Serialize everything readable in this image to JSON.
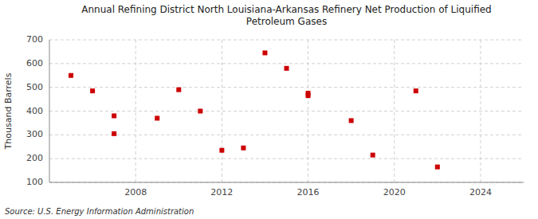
{
  "chart_data": {
    "type": "scatter",
    "title": "Annual Refining District North Louisiana-Arkansas Refinery Net Production of Liquified\nPetroleum Gases",
    "y_label": "Thousand Barrels",
    "annotations": [
      "Source: U.S. Energy Information Administration"
    ],
    "x": [
      2005,
      2006,
      2007,
      2007,
      2009,
      2010,
      2011,
      2012,
      2013,
      2014,
      2015,
      2016,
      2016,
      2018,
      2019,
      2021,
      2022
    ],
    "values": [
      550,
      485,
      380,
      305,
      370,
      490,
      400,
      235,
      245,
      645,
      580,
      465,
      475,
      360,
      215,
      485,
      165
    ],
    "color": "#cc0000",
    "marker": "square",
    "xlim": [
      2004,
      2026
    ],
    "ylim": [
      100,
      700
    ],
    "xticks": [
      2008,
      2012,
      2016,
      2020,
      2024
    ],
    "yticks": [
      100,
      200,
      300,
      400,
      500,
      600,
      700
    ],
    "grid": true
  }
}
